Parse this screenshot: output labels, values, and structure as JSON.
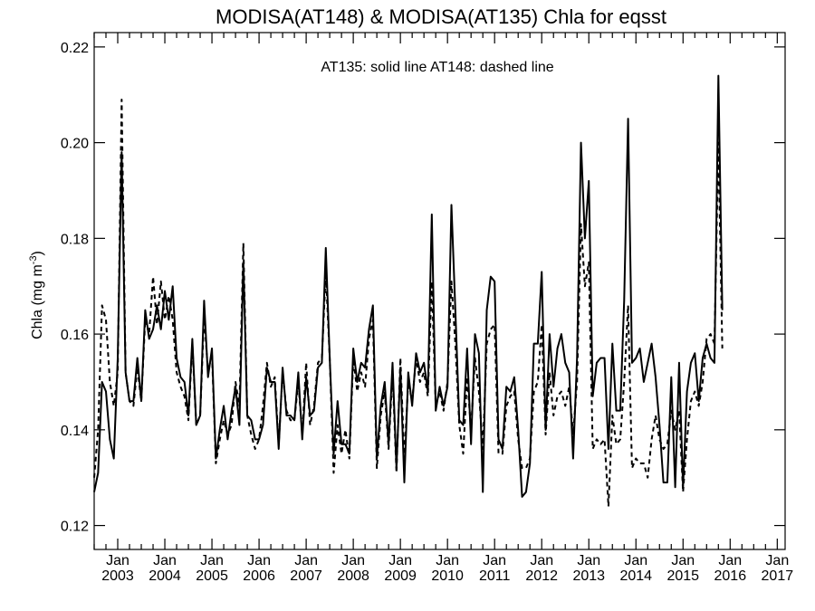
{
  "chart_data": {
    "type": "line",
    "title": "MODISA(AT148) & MODISA(AT135)  Chla for eqsst",
    "annotation": "AT135: solid line   AT148: dashed line",
    "ylabel_main": "Chla (mg m",
    "ylabel_sup": "-3",
    "ylabel_tail": ")",
    "xlabel": "",
    "ylim": [
      0.115,
      0.223
    ],
    "yticks": [
      "0.12",
      "0.14",
      "0.16",
      "0.18",
      "0.20",
      "0.22"
    ],
    "ytick_values": [
      0.12,
      0.14,
      0.16,
      0.18,
      0.2,
      0.22
    ],
    "x_start": "2002-07",
    "x_end": "2017-03",
    "xtick_month": "Jan",
    "xtick_years": [
      "2003",
      "2004",
      "2005",
      "2006",
      "2007",
      "2008",
      "2009",
      "2010",
      "2011",
      "2012",
      "2013",
      "2014",
      "2015",
      "2016",
      "2017"
    ],
    "grid": false,
    "series": [
      {
        "style": "solid",
        "start": "2002-07",
        "values": [
          0.127,
          0.131,
          0.15,
          0.148,
          0.138,
          0.134,
          0.155,
          0.198,
          0.152,
          0.146,
          0.146,
          0.155,
          0.146,
          0.165,
          0.159,
          0.161,
          0.166,
          0.161,
          0.169,
          0.163,
          0.17,
          0.155,
          0.151,
          0.15,
          0.143,
          0.159,
          0.141,
          0.143,
          0.167,
          0.151,
          0.157,
          0.134,
          0.14,
          0.145,
          0.138,
          0.144,
          0.149,
          0.141,
          0.175,
          0.143,
          0.142,
          0.138,
          0.138,
          0.141,
          0.153,
          0.15,
          0.15,
          0.136,
          0.153,
          0.143,
          0.143,
          0.142,
          0.152,
          0.138,
          0.151,
          0.143,
          0.144,
          0.153,
          0.154,
          0.178,
          0.155,
          0.135,
          0.146,
          0.137,
          0.137,
          0.135,
          0.157,
          0.15,
          0.154,
          0.153,
          0.161,
          0.166,
          0.134,
          0.145,
          0.15,
          0.137,
          0.154,
          0.132,
          0.153,
          0.129,
          0.152,
          0.145,
          0.156,
          0.152,
          0.154,
          0.148,
          0.185,
          0.144,
          0.149,
          0.145,
          0.149,
          0.187,
          0.165,
          0.142,
          0.141,
          0.157,
          0.137,
          0.16,
          0.156,
          0.127,
          0.165,
          0.172,
          0.171,
          0.138,
          0.136,
          0.149,
          0.148,
          0.151,
          0.14,
          0.126,
          0.127,
          0.133,
          0.158,
          0.158,
          0.173,
          0.14,
          0.16,
          0.149,
          0.157,
          0.16,
          0.154,
          0.152,
          0.134,
          0.155,
          0.2,
          0.18,
          0.192,
          0.147,
          0.154,
          0.155,
          0.155,
          0.136,
          0.158,
          0.144,
          0.144,
          0.167,
          0.205,
          0.154,
          0.155,
          0.157,
          0.15,
          0.154,
          0.158,
          0.151,
          0.141,
          0.129,
          0.129,
          0.151,
          0.128,
          0.154,
          0.128,
          0.148,
          0.154,
          0.156,
          0.146,
          0.155,
          0.158,
          0.155,
          0.154,
          0.214,
          0.165
        ]
      },
      {
        "style": "dashed",
        "start": "2002-07",
        "values": [
          0.13,
          0.14,
          0.166,
          0.163,
          0.15,
          0.145,
          0.152,
          0.209,
          0.152,
          0.146,
          0.145,
          0.153,
          0.146,
          0.163,
          0.16,
          0.172,
          0.162,
          0.171,
          0.163,
          0.168,
          0.163,
          0.152,
          0.149,
          0.147,
          0.142,
          0.158,
          0.141,
          0.143,
          0.164,
          0.152,
          0.156,
          0.133,
          0.138,
          0.142,
          0.139,
          0.141,
          0.15,
          0.145,
          0.179,
          0.143,
          0.139,
          0.136,
          0.138,
          0.145,
          0.154,
          0.149,
          0.151,
          0.137,
          0.152,
          0.144,
          0.142,
          0.142,
          0.15,
          0.139,
          0.154,
          0.141,
          0.145,
          0.154,
          0.155,
          0.173,
          0.155,
          0.131,
          0.141,
          0.135,
          0.14,
          0.134,
          0.155,
          0.148,
          0.152,
          0.149,
          0.159,
          0.163,
          0.132,
          0.143,
          0.148,
          0.136,
          0.152,
          0.131,
          0.155,
          0.134,
          0.15,
          0.146,
          0.155,
          0.15,
          0.152,
          0.147,
          0.171,
          0.145,
          0.148,
          0.144,
          0.15,
          0.171,
          0.158,
          0.141,
          0.135,
          0.151,
          0.14,
          0.155,
          0.148,
          0.136,
          0.158,
          0.161,
          0.162,
          0.135,
          0.135,
          0.145,
          0.147,
          0.148,
          0.138,
          0.132,
          0.132,
          0.134,
          0.148,
          0.15,
          0.162,
          0.139,
          0.152,
          0.143,
          0.147,
          0.148,
          0.145,
          0.149,
          0.139,
          0.15,
          0.183,
          0.17,
          0.175,
          0.136,
          0.138,
          0.137,
          0.138,
          0.124,
          0.143,
          0.137,
          0.138,
          0.15,
          0.166,
          0.132,
          0.134,
          0.133,
          0.133,
          0.13,
          0.138,
          0.143,
          0.138,
          0.136,
          0.137,
          0.144,
          0.14,
          0.144,
          0.127,
          0.138,
          0.146,
          0.148,
          0.145,
          0.15,
          0.159,
          0.16,
          0.158,
          0.2,
          0.157
        ]
      }
    ]
  }
}
